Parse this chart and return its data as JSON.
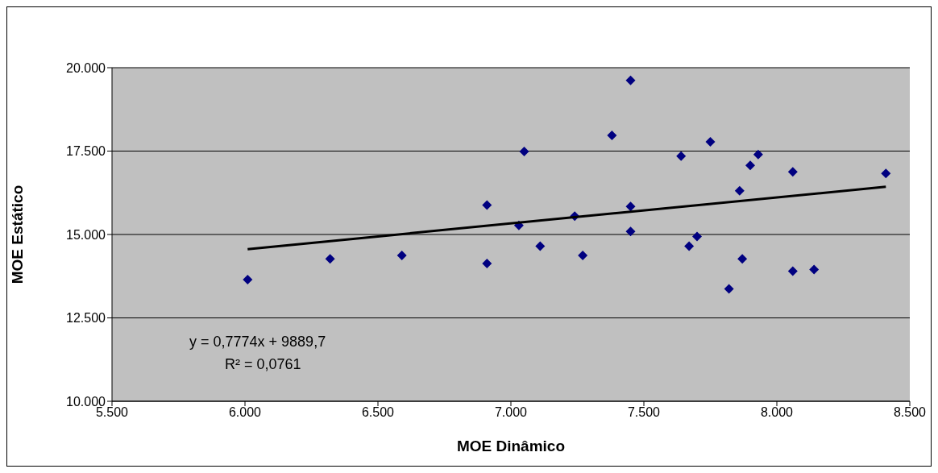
{
  "chart_data": {
    "type": "scatter",
    "xlabel": "MOE Dinâmico",
    "ylabel": "MOE Estático",
    "xlim": [
      5500,
      8500
    ],
    "ylim": [
      10000,
      20000
    ],
    "xticks": [
      {
        "value": 5500,
        "label": "5.500"
      },
      {
        "value": 6000,
        "label": "6.000"
      },
      {
        "value": 6500,
        "label": "6.500"
      },
      {
        "value": 7000,
        "label": "7.000"
      },
      {
        "value": 7500,
        "label": "7.500"
      },
      {
        "value": 8000,
        "label": "8.000"
      },
      {
        "value": 8500,
        "label": "8.500"
      }
    ],
    "yticks": [
      {
        "value": 10000,
        "label": "10.000"
      },
      {
        "value": 12500,
        "label": "12.500"
      },
      {
        "value": 15000,
        "label": "15.000"
      },
      {
        "value": 17500,
        "label": "17.500"
      },
      {
        "value": 20000,
        "label": "20.000"
      }
    ],
    "grid": "y",
    "legend": false,
    "series": [
      {
        "type": "scatter",
        "color": "#000080",
        "marker": "diamond",
        "x": [
          6010,
          6320,
          6590,
          6910,
          6910,
          7030,
          7050,
          7110,
          7240,
          7270,
          7380,
          7450,
          7450,
          7450,
          7640,
          7670,
          7700,
          7750,
          7820,
          7860,
          7870,
          7900,
          7930,
          8060,
          8060,
          8140,
          8410
        ],
        "values": [
          13650,
          14270,
          14370,
          14130,
          15880,
          15270,
          17490,
          14650,
          15550,
          14370,
          17970,
          19620,
          15840,
          15090,
          17350,
          14650,
          14940,
          17780,
          13370,
          16310,
          14270,
          17070,
          17400,
          16880,
          13900,
          13950,
          16830
        ]
      },
      {
        "type": "line",
        "color": "#000000",
        "marker": "none",
        "line_style": "solid",
        "x": [
          6010,
          8410
        ],
        "values": [
          14560,
          16430
        ]
      }
    ],
    "annotations": [
      "y = 0,7774x + 9889,7",
      "R² = 0,0761"
    ]
  }
}
